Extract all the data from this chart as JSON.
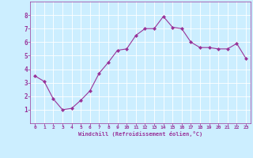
{
  "x": [
    0,
    1,
    2,
    3,
    4,
    5,
    6,
    7,
    8,
    9,
    10,
    11,
    12,
    13,
    14,
    15,
    16,
    17,
    18,
    19,
    20,
    21,
    22,
    23
  ],
  "y": [
    3.5,
    3.1,
    1.8,
    1.0,
    1.1,
    1.7,
    2.4,
    3.7,
    4.5,
    5.4,
    5.5,
    6.5,
    7.0,
    7.0,
    7.9,
    7.1,
    7.0,
    6.0,
    5.6,
    5.6,
    5.5,
    5.5,
    5.9,
    4.8
  ],
  "line_color": "#993399",
  "marker": "D",
  "marker_size": 2,
  "bg_color": "#cceeff",
  "grid_color": "#ffffff",
  "xlabel": "Windchill (Refroidissement éolien,°C)",
  "xlabel_color": "#993399",
  "tick_color": "#993399",
  "xlim": [
    -0.5,
    23.5
  ],
  "ylim": [
    0,
    9
  ],
  "yticks": [
    1,
    2,
    3,
    4,
    5,
    6,
    7,
    8
  ],
  "xticks": [
    0,
    1,
    2,
    3,
    4,
    5,
    6,
    7,
    8,
    9,
    10,
    11,
    12,
    13,
    14,
    15,
    16,
    17,
    18,
    19,
    20,
    21,
    22,
    23
  ],
  "figsize": [
    3.2,
    2.0
  ],
  "dpi": 100
}
